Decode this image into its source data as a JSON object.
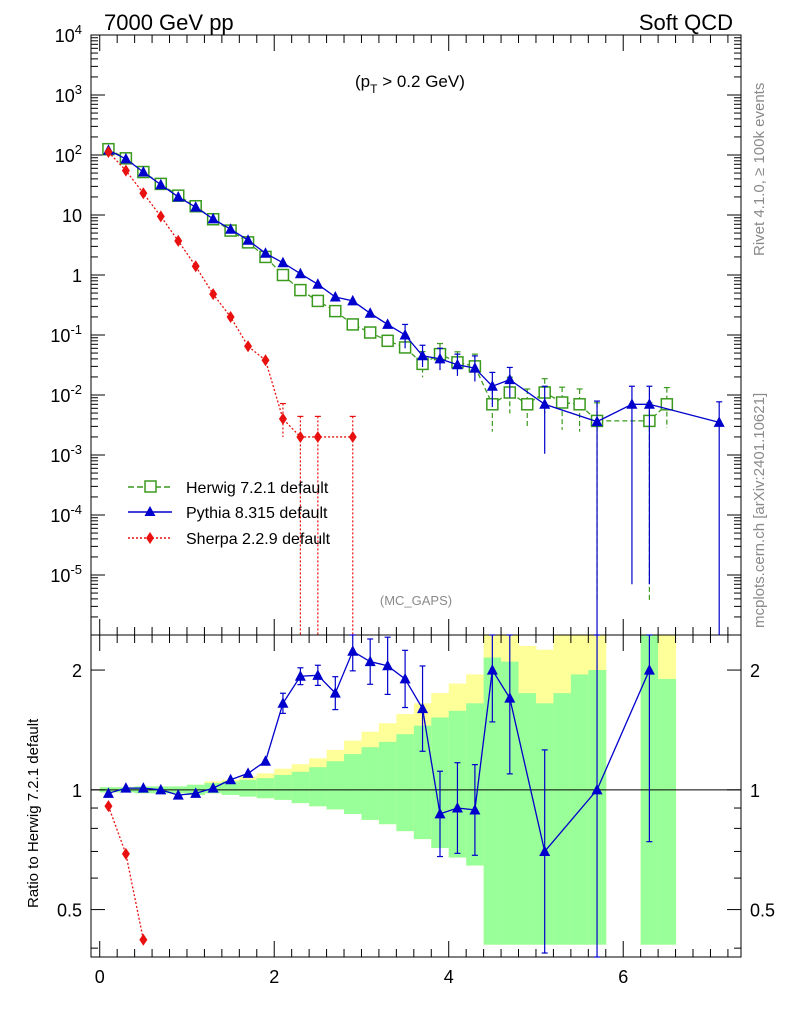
{
  "header": {
    "left": "7000 GeV pp",
    "right": "Soft QCD"
  },
  "cut_label_pre": "(p",
  "cut_label_sub": "T",
  "cut_label_post": " > 0.2 GeV)",
  "side_top": "Rivet 4.1.0, ≥ 100k events",
  "side_bottom": "mcplots.cern.ch [arXiv:2401.10621]",
  "analysis": "(MC_GAPS)",
  "colors": {
    "herwig": "#3a9a1e",
    "pythia": "#0000cc",
    "sherpa": "#e8110f",
    "band_inner": "#99ff99",
    "band_outer": "#ffff99"
  },
  "chart_data": [
    {
      "type": "line",
      "title": "7000 GeV pp — Soft QCD",
      "xlabel": "",
      "ylabel": "",
      "yscale": "log",
      "xlim": [
        -0.1,
        7.35
      ],
      "ylim": [
        1e-06,
        10000
      ],
      "y_ticks": [
        "10^-5",
        "10^-4",
        "10^-3",
        "10^-2",
        "10^-1",
        "1",
        "10",
        "10^2",
        "10^3",
        "10^4"
      ],
      "legend": [
        "Herwig 7.2.1 default",
        "Pythia 8.315 default",
        "Sherpa 2.2.9 default"
      ],
      "legend_position": "bottom-left",
      "series": [
        {
          "name": "Herwig 7.2.1 default",
          "key": "herwig",
          "marker": "open-square",
          "style": "dashed",
          "x": [
            0.1,
            0.3,
            0.5,
            0.7,
            0.9,
            1.1,
            1.3,
            1.5,
            1.7,
            1.9,
            2.1,
            2.3,
            2.5,
            2.7,
            2.9,
            3.1,
            3.3,
            3.5,
            3.7,
            3.9,
            4.1,
            4.3,
            4.5,
            4.7,
            4.9,
            5.1,
            5.3,
            5.5,
            5.7,
            6.3,
            6.5
          ],
          "y": [
            125,
            88,
            52,
            33,
            21,
            14,
            8.5,
            5.5,
            3.5,
            2.0,
            1.0,
            0.56,
            0.37,
            0.25,
            0.15,
            0.11,
            0.08,
            0.062,
            0.033,
            0.048,
            0.035,
            0.03,
            0.007,
            0.011,
            0.007,
            0.011,
            0.0075,
            0.007,
            0.0037,
            0.0037,
            0.007
          ]
        },
        {
          "name": "Pythia 8.315 default",
          "key": "pythia",
          "marker": "filled-triangle",
          "style": "solid",
          "x": [
            0.1,
            0.3,
            0.5,
            0.7,
            0.9,
            1.1,
            1.3,
            1.5,
            1.7,
            1.9,
            2.1,
            2.3,
            2.5,
            2.7,
            2.9,
            3.1,
            3.3,
            3.5,
            3.7,
            3.9,
            4.1,
            4.3,
            4.5,
            4.7,
            5.1,
            5.7,
            6.1,
            6.3,
            7.1
          ],
          "y": [
            120,
            86,
            52,
            32,
            20,
            13.5,
            8.6,
            5.8,
            3.8,
            2.3,
            1.6,
            1.05,
            0.7,
            0.43,
            0.37,
            0.23,
            0.15,
            0.1,
            0.045,
            0.04,
            0.032,
            0.028,
            0.014,
            0.018,
            0.007,
            0.0036,
            0.007,
            0.007,
            0.0035
          ]
        },
        {
          "name": "Sherpa 2.2.9 default",
          "key": "sherpa",
          "marker": "filled-diamond",
          "style": "dotted",
          "x": [
            0.1,
            0.3,
            0.5,
            0.7,
            0.9,
            1.1,
            1.3,
            1.5,
            1.7,
            1.9,
            2.1,
            2.3,
            2.5,
            2.9
          ],
          "y": [
            112,
            55,
            23,
            9.5,
            3.7,
            1.4,
            0.48,
            0.2,
            0.065,
            0.038,
            0.004,
            0.002,
            0.002,
            0.002
          ]
        }
      ]
    },
    {
      "type": "line",
      "title": "",
      "xlabel": "",
      "ylabel": "Ratio to Herwig 7.2.1 default",
      "yscale": "log",
      "xlim": [
        -0.1,
        7.35
      ],
      "ylim": [
        0.38,
        2.45
      ],
      "x_ticks": [
        "0",
        "2",
        "4",
        "6"
      ],
      "y_ticks": [
        "0.5",
        "1",
        "2"
      ],
      "series": [
        {
          "name": "Pythia 8.315 default",
          "key": "pythia",
          "x": [
            0.1,
            0.3,
            0.5,
            0.7,
            0.9,
            1.1,
            1.3,
            1.5,
            1.7,
            1.9,
            2.1,
            2.3,
            2.5,
            2.7,
            2.9,
            3.1,
            3.3,
            3.5,
            3.7,
            3.9,
            4.1,
            4.3,
            4.5,
            4.7,
            5.1,
            5.7,
            6.3
          ],
          "y": [
            0.98,
            1.01,
            1.01,
            1.0,
            0.97,
            0.98,
            1.01,
            1.06,
            1.1,
            1.18,
            1.65,
            1.93,
            1.94,
            1.75,
            2.23,
            2.1,
            2.05,
            1.9,
            1.6,
            0.87,
            0.9,
            0.89,
            2.0,
            1.7,
            0.7,
            1.0,
            2.0
          ]
        },
        {
          "name": "Sherpa 2.2.9 default",
          "key": "sherpa",
          "x": [
            0.1,
            0.3,
            0.5
          ],
          "y": [
            0.91,
            0.69,
            0.42
          ]
        }
      ]
    }
  ]
}
